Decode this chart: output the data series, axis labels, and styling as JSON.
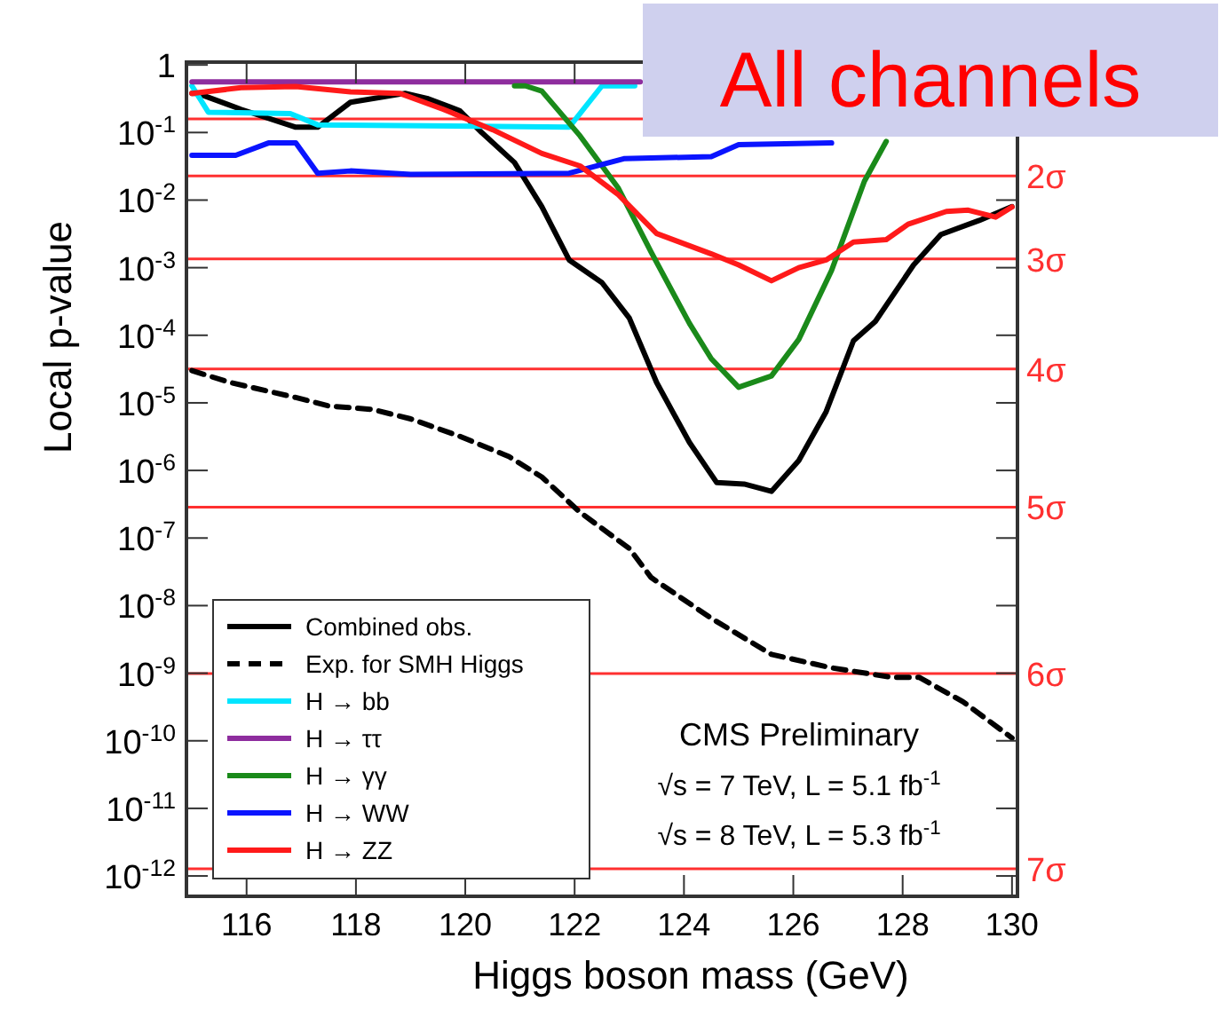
{
  "chart_data": {
    "type": "line",
    "title": "All channels",
    "xlabel": "Higgs boson mass (GeV)",
    "ylabel": "Local p-value",
    "log": "y",
    "xlim": [
      114.9,
      130.1
    ],
    "ylim": [
      5e-13,
      1.1
    ],
    "xticks": [
      116,
      118,
      120,
      122,
      124,
      126,
      128,
      130
    ],
    "yticks": [
      1,
      {
        "value": 0.1,
        "label": "10$^{-1}$"
      },
      {
        "value": 0.01,
        "label": "10$^{-2}$"
      },
      {
        "value": 0.001,
        "label": "10$^{-3}$"
      },
      {
        "value": 0.0001,
        "label": "10$^{-4}$"
      },
      {
        "value": 1e-05,
        "label": "10$^{-5}$"
      },
      {
        "value": 1e-06,
        "label": "10$^{-6}$"
      },
      {
        "value": 1e-07,
        "label": "10$^{-7}$"
      },
      {
        "value": 1e-08,
        "label": "10$^{-8}$"
      },
      {
        "value": 1e-09,
        "label": "10$^{-9}$"
      },
      {
        "value": 1e-10,
        "label": "10$^{-10}$"
      },
      {
        "value": 1e-11,
        "label": "10$^{-11}$"
      },
      {
        "value": 1e-12,
        "label": "10$^{-12}$"
      }
    ],
    "grid": false,
    "legend": "bottom left",
    "marker": "none",
    "series": [
      {
        "name": "Combined obs.",
        "color": "#000000",
        "line_style": "solid",
        "x": [
          115,
          115.1,
          115.9,
          116.9,
          117.3,
          117.9,
          118.9,
          119.3,
          119.9,
          120.3,
          120.9,
          121.4,
          121.9,
          122.5,
          123,
          123.5,
          124.1,
          124.6,
          125.1,
          125.6,
          126.1,
          126.6,
          127.1,
          127.5,
          128.2,
          128.7,
          129.4,
          130
        ],
        "values": [
          0.38,
          0.38,
          0.22,
          0.12,
          0.12,
          0.28,
          0.38,
          0.32,
          0.21,
          0.1,
          0.036,
          0.008,
          0.0013,
          0.0006,
          0.00018,
          2e-05,
          2.6e-06,
          6.6e-07,
          6.3e-07,
          4.9e-07,
          1.4e-06,
          7.4e-06,
          8.3e-05,
          0.00016,
          0.0011,
          0.0031,
          0.005,
          0.008
        ]
      },
      {
        "name": "Exp. for SMH Higgs",
        "color": "#000000",
        "line_style": "dashed",
        "x": [
          115,
          115.7,
          116.9,
          117.5,
          118.3,
          119,
          119.9,
          120.8,
          121.4,
          122.1,
          123,
          123.4,
          124.5,
          125.6,
          126.7,
          127.8,
          128.3,
          129.1,
          130
        ],
        "values": [
          3e-05,
          2e-05,
          1.2e-05,
          9e-06,
          8e-06,
          5.8e-06,
          3.2e-06,
          1.6e-06,
          8e-07,
          2.4e-07,
          7e-08,
          2.6e-08,
          6.5e-09,
          1.9e-09,
          1.2e-09,
          8.7e-10,
          8.7e-10,
          3.8e-10,
          1.1e-10
        ]
      },
      {
        "name": "H → bb",
        "color": "#00e5ff",
        "line_style": "solid",
        "x": [
          115,
          115.3,
          116.8,
          117.3,
          121.9,
          122.5,
          123.1
        ],
        "values": [
          0.49,
          0.2,
          0.19,
          0.13,
          0.12,
          0.49,
          0.49
        ]
      },
      {
        "name": "H → ττ",
        "color": "#8e2d9e",
        "line_style": "solid",
        "x": [
          115,
          119,
          123.2
        ],
        "values": [
          0.56,
          0.56,
          0.56
        ]
      },
      {
        "name": "H → γγ",
        "color": "#1a8a1a",
        "line_style": "solid",
        "x": [
          120.9,
          121.1,
          121.4,
          122.1,
          122.8,
          123.4,
          124.1,
          124.5,
          125,
          125.6,
          126.1,
          126.7,
          127.3,
          127.7
        ],
        "values": [
          0.49,
          0.49,
          0.41,
          0.089,
          0.015,
          0.0017,
          0.00015,
          4.5e-05,
          1.7e-05,
          2.5e-05,
          8.7e-05,
          0.00091,
          0.019,
          0.074
        ]
      },
      {
        "name": "H → WW",
        "color": "#0a14ff",
        "line_style": "solid",
        "x": [
          115,
          115.8,
          116.4,
          116.9,
          117.3,
          117.9,
          119,
          121.9,
          122.9,
          124.5,
          125,
          126.7
        ],
        "values": [
          0.046,
          0.046,
          0.07,
          0.07,
          0.025,
          0.027,
          0.024,
          0.025,
          0.041,
          0.044,
          0.066,
          0.07
        ]
      },
      {
        "name": "H → ZZ",
        "color": "#ff1a1a",
        "line_style": "solid",
        "x": [
          115,
          115.9,
          116.9,
          117.9,
          118.8,
          119.6,
          120.5,
          121.4,
          122.1,
          122.8,
          123.5,
          124.5,
          125,
          125.6,
          126.1,
          126.6,
          127.1,
          127.7,
          128.1,
          128.8,
          129.2,
          129.7,
          130
        ],
        "values": [
          0.38,
          0.46,
          0.48,
          0.4,
          0.38,
          0.22,
          0.11,
          0.049,
          0.032,
          0.012,
          0.0032,
          0.0016,
          0.0011,
          0.00064,
          0.001,
          0.0013,
          0.0024,
          0.0026,
          0.0044,
          0.0068,
          0.0071,
          0.0056,
          0.0079
        ]
      }
    ],
    "ref_lines": [
      {
        "axis": "y",
        "value": 0.159,
        "color": "#ff3030"
      },
      {
        "axis": "y",
        "value": 0.0228,
        "label": "2σ",
        "color": "#ff3030"
      },
      {
        "axis": "y",
        "value": 0.00135,
        "label": "3σ",
        "color": "#ff3030"
      },
      {
        "axis": "y",
        "value": 3.17e-05,
        "label": "4σ",
        "color": "#ff3030"
      },
      {
        "axis": "y",
        "value": 2.87e-07,
        "label": "5σ",
        "color": "#ff3030"
      },
      {
        "axis": "y",
        "value": 9.87e-10,
        "label": "6σ",
        "color": "#ff3030"
      },
      {
        "axis": "y",
        "value": 1.28e-12,
        "label": "7σ",
        "color": "#ff3030"
      }
    ],
    "annotations": [
      "CMS Preliminary",
      "√s = 7 TeV, L = 5.1 fb$^{-1}$",
      "√s = 8 TeV, L = 5.3 fb$^{-1}$"
    ]
  }
}
